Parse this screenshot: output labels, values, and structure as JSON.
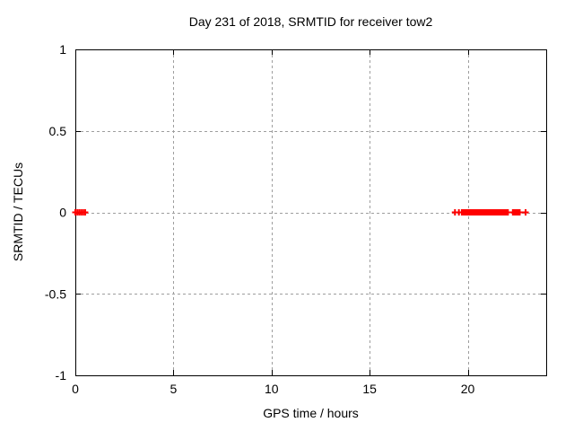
{
  "window": {
    "background": "#ffffff"
  },
  "chart_data": {
    "type": "scatter",
    "title": "Day 231 of 2018, SRMTID for receiver tow2",
    "xlabel": "GPS time / hours",
    "ylabel": "SRMTID / TECUs",
    "xlim": [
      0,
      24
    ],
    "ylim": [
      -1,
      1
    ],
    "xticks": [
      0,
      5,
      10,
      15,
      20
    ],
    "yticks": [
      -1,
      -0.5,
      0,
      0.5,
      1
    ],
    "grid": true,
    "legend_position": "none",
    "frame_color": "#000000",
    "grid_color": "#9e9e9e",
    "series": [
      {
        "name": "SRMTID",
        "marker": "plus",
        "color": "#ff0000",
        "y_constant": 0,
        "x": [
          0.0,
          0.1,
          0.2,
          0.3,
          0.4,
          0.5,
          19.35,
          19.55,
          19.7,
          19.75,
          19.8,
          19.85,
          19.9,
          19.95,
          20.0,
          20.05,
          20.1,
          20.15,
          20.2,
          20.25,
          20.3,
          20.35,
          20.4,
          20.45,
          20.5,
          20.55,
          20.6,
          20.65,
          20.7,
          20.75,
          20.8,
          20.85,
          20.9,
          20.95,
          21.0,
          21.05,
          21.1,
          21.15,
          21.2,
          21.25,
          21.3,
          21.35,
          21.4,
          21.45,
          21.5,
          21.55,
          21.6,
          21.65,
          21.7,
          21.75,
          21.8,
          21.85,
          21.9,
          21.95,
          22.0,
          22.05,
          22.3,
          22.35,
          22.4,
          22.45,
          22.5,
          22.55,
          22.6,
          22.65,
          22.95
        ]
      }
    ]
  }
}
